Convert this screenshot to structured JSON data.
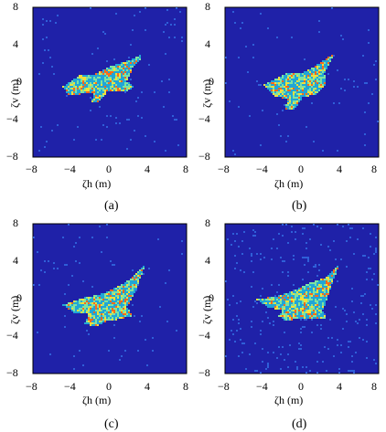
{
  "panels": [
    {
      "id": "a",
      "caption": "(a)",
      "xlabel": "ζh (m)",
      "ylabel": "ζv (m)",
      "xticks": [
        "−8",
        "−4",
        "0",
        "4",
        "8"
      ],
      "yticks": [
        "8",
        "4",
        "0",
        "−4",
        "−8"
      ]
    },
    {
      "id": "b",
      "caption": "(b)",
      "xlabel": "ζh (m)",
      "ylabel": "ζv (m)",
      "xticks": [
        "−8",
        "−4",
        "0",
        "4",
        "8"
      ],
      "yticks": [
        "8",
        "4",
        "0",
        "−4",
        "−8"
      ]
    },
    {
      "id": "c",
      "caption": "(c)",
      "xlabel": "ζh (m)",
      "ylabel": "ζv (m)",
      "xticks": [
        "−8",
        "−4",
        "0",
        "4",
        "8"
      ],
      "yticks": [
        "8",
        "4",
        "0",
        "−4",
        "−8"
      ]
    },
    {
      "id": "d",
      "caption": "(d)",
      "xlabel": "ζh (m)",
      "ylabel": "ζv (m)",
      "xticks": [
        "−8",
        "−4",
        "0",
        "4",
        "8"
      ],
      "yticks": [
        "8",
        "4",
        "0",
        "−4",
        "−8"
      ]
    }
  ],
  "colors": {
    "background": "#1f21a8",
    "noise": "#2f5fd8",
    "mid": "#21a6d6",
    "high": "#7ee3a0",
    "peak": "#f2e03a",
    "hot": "#ff6a1a"
  }
}
